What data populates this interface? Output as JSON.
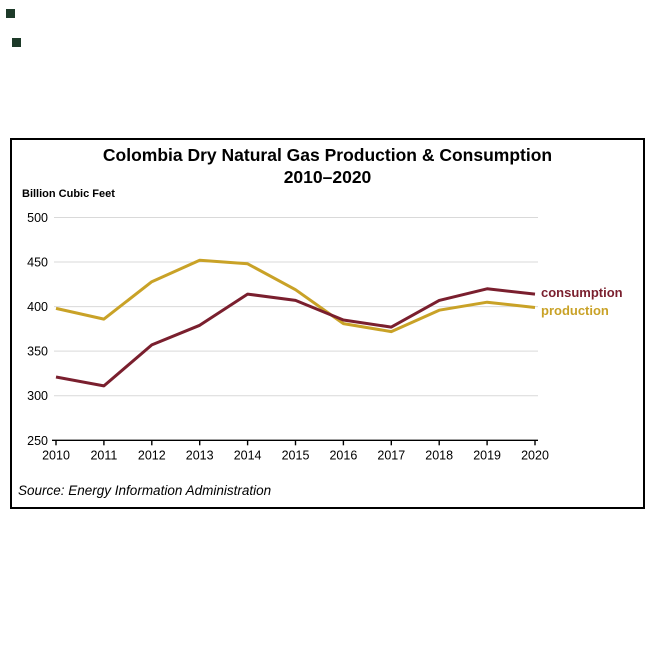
{
  "decorations": {
    "square_color": "#1d3a29"
  },
  "chart": {
    "title_line1": "Colombia Dry Natural Gas Production & Consumption",
    "title_line2": "2010–2020",
    "unit_label": "Billion Cubic Feet",
    "source": "Source: Energy Information Administration"
  },
  "chart_data": {
    "type": "line",
    "title": "Colombia Dry Natural Gas Production & Consumption 2010–2020",
    "ylabel": "Billion Cubic Feet",
    "x": [
      2010,
      2011,
      2012,
      2013,
      2014,
      2015,
      2016,
      2017,
      2018,
      2019,
      2020
    ],
    "series": [
      {
        "name": "consumption",
        "color": "#7a1f2e",
        "values": [
          321,
          311,
          357,
          379,
          414,
          407,
          385,
          377,
          407,
          420,
          414
        ]
      },
      {
        "name": "production",
        "color": "#c9a227",
        "values": [
          398,
          386,
          428,
          452,
          448,
          419,
          381,
          372,
          396,
          405,
          399
        ]
      }
    ],
    "ylim": [
      250,
      500
    ],
    "ytick_step": 50,
    "grid": "horizontal",
    "gridline_color": "#d9d9d9",
    "axis_color": "#000000",
    "legend_position": "right-of-line-ends"
  }
}
